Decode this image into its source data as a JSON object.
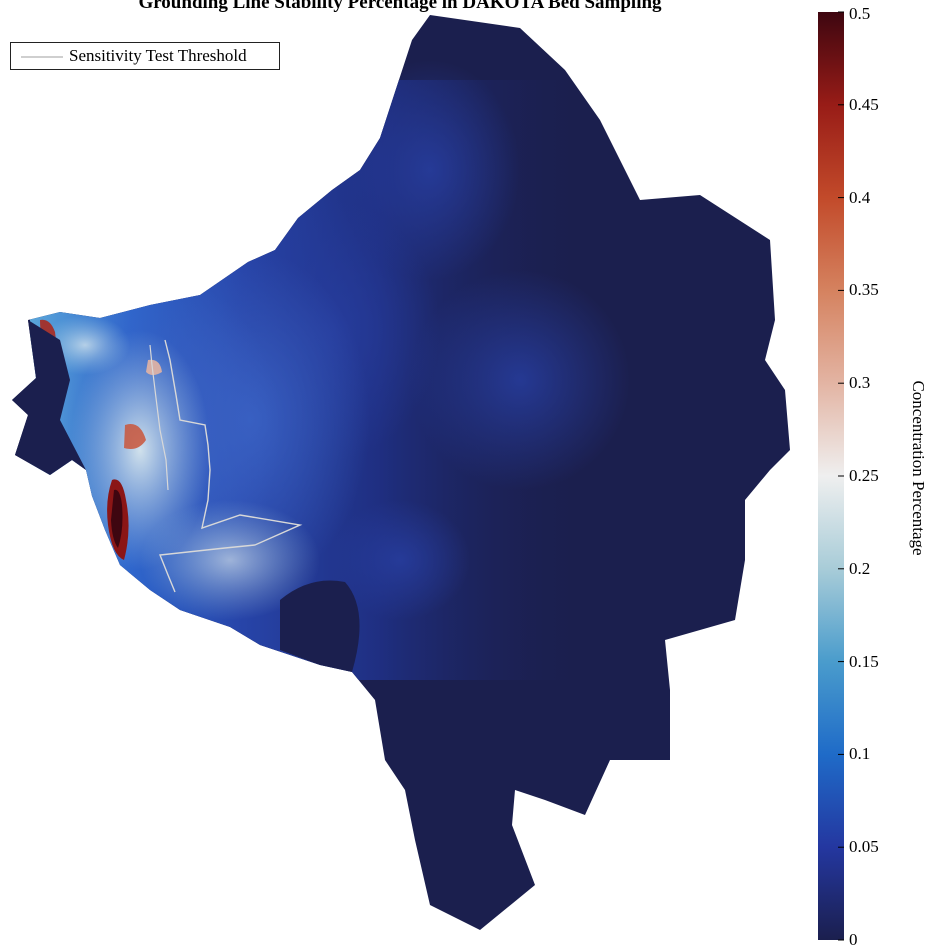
{
  "title": "Grounding Line Stability Percentage in DAKOTA Bed Sampling",
  "legend": {
    "entry": "Sensitivity Test Threshold",
    "line_color": "#d0d0d0"
  },
  "colorbar": {
    "label": "Concentration Percentage",
    "min": 0,
    "max": 0.5,
    "ticks": [
      "0",
      "0.05",
      "0.1",
      "0.15",
      "0.2",
      "0.25",
      "0.3",
      "0.35",
      "0.4",
      "0.45",
      "0.5"
    ],
    "colors": {
      "stop_0": "#1b1f4e",
      "stop_005": "#2437a0",
      "stop_01": "#1f6bc8",
      "stop_015": "#4a9ccc",
      "stop_02": "#a8ccd8",
      "stop_025": "#efefef",
      "stop_03": "#e3b4a3",
      "stop_035": "#d5825f",
      "stop_04": "#c24a2a",
      "stop_045": "#981c17",
      "stop_05": "#3e0610"
    }
  }
}
